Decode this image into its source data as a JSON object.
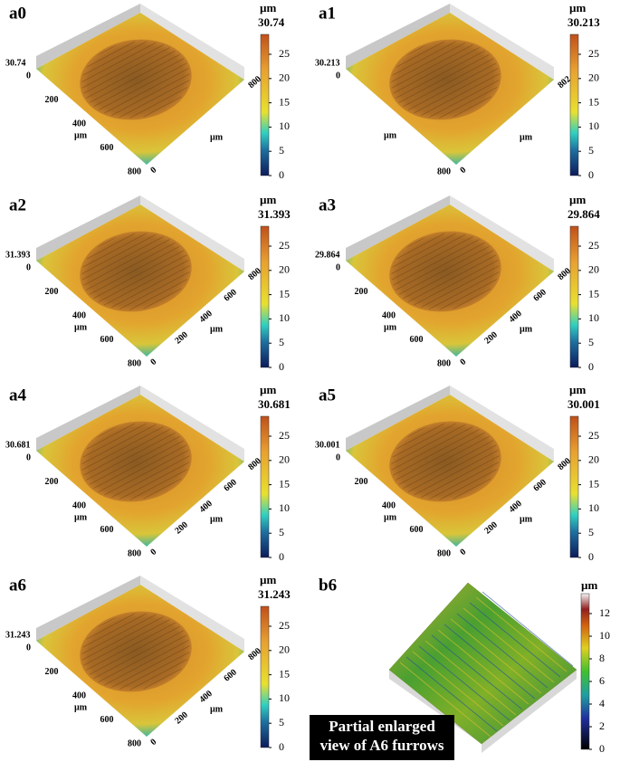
{
  "panels": [
    {
      "label": "a0",
      "height_label": "30.74",
      "colorbar_unit": "µm",
      "colorbar_max": "30.74",
      "colorbar_ticks": [
        0,
        5,
        10,
        15,
        20,
        25
      ],
      "axis_unit": "µm",
      "left_ticks": [
        0,
        200,
        400,
        600,
        800
      ],
      "right_ticks": [
        0,
        800
      ]
    },
    {
      "label": "a1",
      "height_label": "30.213",
      "colorbar_unit": "µm",
      "colorbar_max": "30.213",
      "colorbar_ticks": [
        0,
        5,
        10,
        15,
        20,
        25
      ],
      "axis_unit": "µm",
      "left_ticks": [
        0,
        800
      ],
      "right_ticks": [
        0,
        802
      ]
    },
    {
      "label": "a2",
      "height_label": "31.393",
      "colorbar_unit": "µm",
      "colorbar_max": "31.393",
      "colorbar_ticks": [
        0,
        5,
        10,
        15,
        20,
        25
      ],
      "axis_unit": "µm",
      "left_ticks": [
        0,
        200,
        400,
        600,
        800
      ],
      "right_ticks": [
        0,
        200,
        400,
        600,
        800
      ]
    },
    {
      "label": "a3",
      "height_label": "29.864",
      "colorbar_unit": "µm",
      "colorbar_max": "29.864",
      "colorbar_ticks": [
        0,
        5,
        10,
        15,
        20,
        25
      ],
      "axis_unit": "µm",
      "left_ticks": [
        0,
        200,
        400,
        600,
        800
      ],
      "right_ticks": [
        0,
        200,
        400,
        600,
        800
      ]
    },
    {
      "label": "a4",
      "height_label": "30.681",
      "colorbar_unit": "µm",
      "colorbar_max": "30.681",
      "colorbar_ticks": [
        0,
        5,
        10,
        15,
        20,
        25
      ],
      "axis_unit": "µm",
      "left_ticks": [
        0,
        200,
        400,
        600,
        800
      ],
      "right_ticks": [
        0,
        200,
        400,
        600,
        800
      ]
    },
    {
      "label": "a5",
      "height_label": "30.001",
      "colorbar_unit": "µm",
      "colorbar_max": "30.001",
      "colorbar_ticks": [
        0,
        5,
        10,
        15,
        20,
        25
      ],
      "axis_unit": "µm",
      "left_ticks": [
        0,
        200,
        400,
        600,
        800
      ],
      "right_ticks": [
        0,
        200,
        400,
        600,
        800
      ]
    },
    {
      "label": "a6",
      "height_label": "31.243",
      "colorbar_unit": "µm",
      "colorbar_max": "31.243",
      "colorbar_ticks": [
        0,
        5,
        10,
        15,
        20,
        25
      ],
      "axis_unit": "µm",
      "left_ticks": [
        0,
        200,
        400,
        600,
        800
      ],
      "right_ticks": [
        0,
        200,
        400,
        600,
        800
      ]
    }
  ],
  "detail": {
    "label": "b6",
    "colorbar_unit": "µm",
    "colorbar_ticks": [
      0,
      2,
      4,
      6,
      8,
      10,
      12
    ],
    "caption": [
      "Partial enlarged",
      "view of A6 furrows"
    ]
  }
}
